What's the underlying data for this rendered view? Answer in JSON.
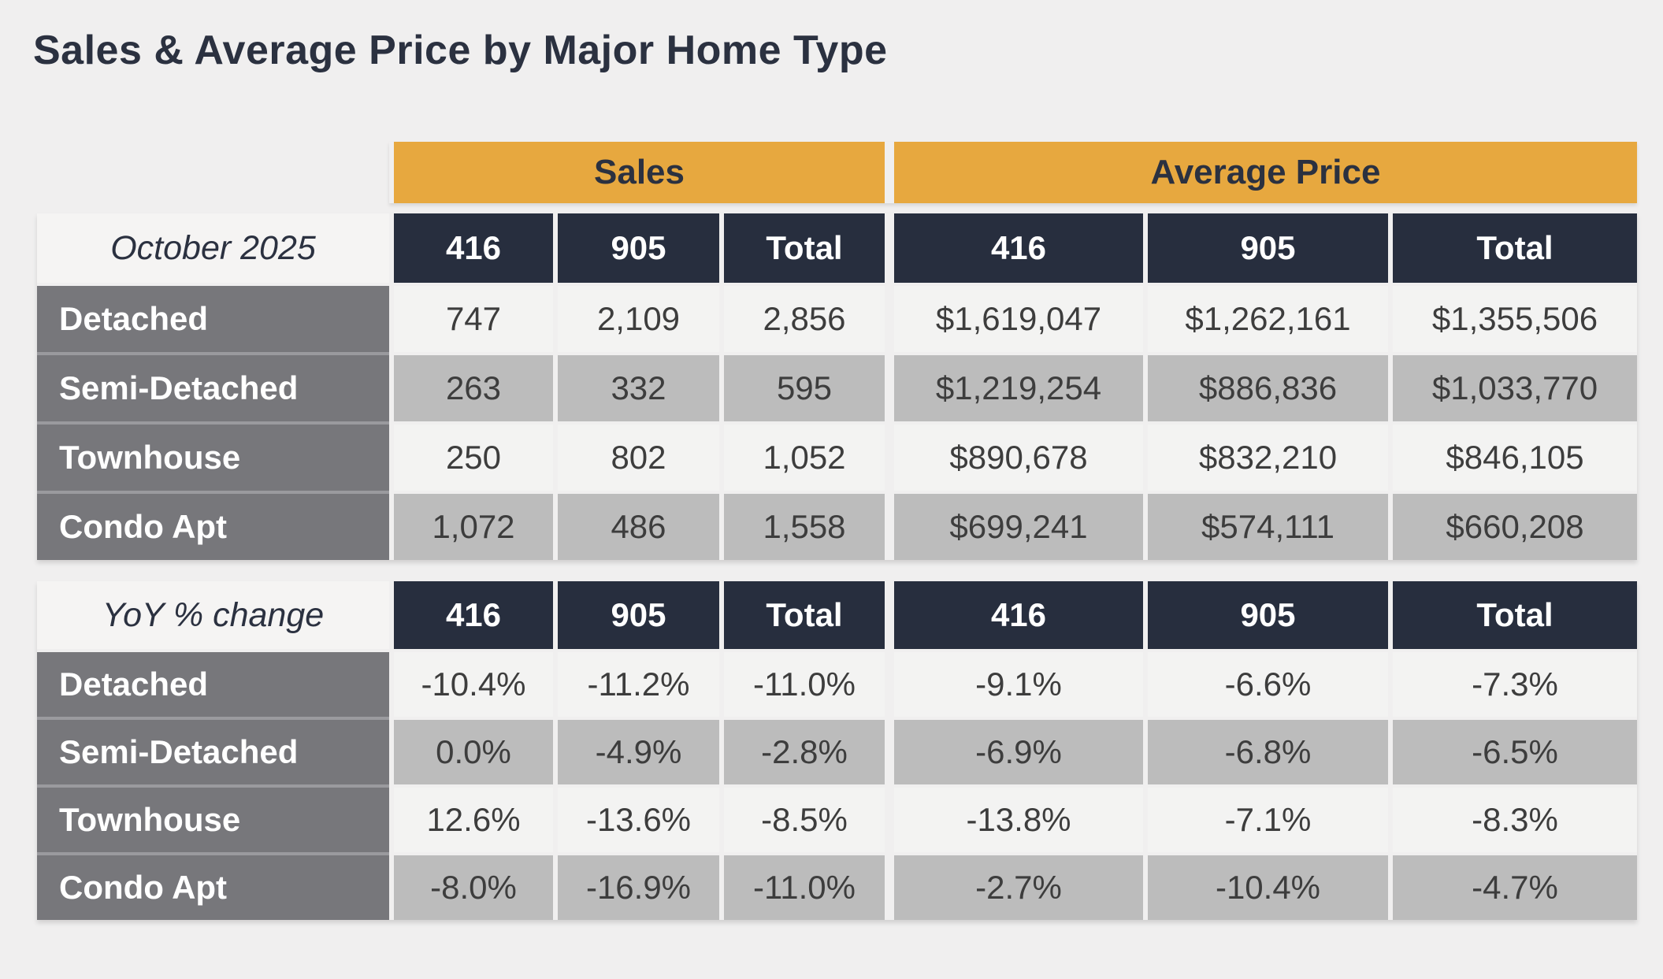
{
  "title": "Sales & Average Price by Major Home Type",
  "groups": [
    {
      "label": "Sales"
    },
    {
      "label": "Average Price"
    }
  ],
  "colors": {
    "page_background": "#f0efef",
    "group_band": "#e7a83f",
    "column_header": "#272e3e",
    "row_label": "#77777b",
    "row_light": "#f3f3f2",
    "row_alternate": "#bcbcbc",
    "title_text": "#2b3140",
    "data_text": "#3d3d3d"
  },
  "sections": [
    {
      "period_label": "October 2025",
      "columns": [
        "416",
        "905",
        "Total",
        "416",
        "905",
        "Total"
      ],
      "rows": [
        {
          "label": "Detached",
          "sales": [
            "747",
            "2,109",
            "2,856"
          ],
          "avg_price": [
            "$1,619,047",
            "$1,262,161",
            "$1,355,506"
          ]
        },
        {
          "label": "Semi-Detached",
          "sales": [
            "263",
            "332",
            "595"
          ],
          "avg_price": [
            "$1,219,254",
            "$886,836",
            "$1,033,770"
          ]
        },
        {
          "label": "Townhouse",
          "sales": [
            "250",
            "802",
            "1,052"
          ],
          "avg_price": [
            "$890,678",
            "$832,210",
            "$846,105"
          ]
        },
        {
          "label": "Condo Apt",
          "sales": [
            "1,072",
            "486",
            "1,558"
          ],
          "avg_price": [
            "$699,241",
            "$574,111",
            "$660,208"
          ]
        }
      ]
    },
    {
      "period_label": "YoY % change",
      "columns": [
        "416",
        "905",
        "Total",
        "416",
        "905",
        "Total"
      ],
      "rows": [
        {
          "label": "Detached",
          "sales": [
            "-10.4%",
            "-11.2%",
            "-11.0%"
          ],
          "avg_price": [
            "-9.1%",
            "-6.6%",
            "-7.3%"
          ]
        },
        {
          "label": "Semi-Detached",
          "sales": [
            "0.0%",
            "-4.9%",
            "-2.8%"
          ],
          "avg_price": [
            "-6.9%",
            "-6.8%",
            "-6.5%"
          ]
        },
        {
          "label": "Townhouse",
          "sales": [
            "12.6%",
            "-13.6%",
            "-8.5%"
          ],
          "avg_price": [
            "-13.8%",
            "-7.1%",
            "-8.3%"
          ]
        },
        {
          "label": "Condo Apt",
          "sales": [
            "-8.0%",
            "-16.9%",
            "-11.0%"
          ],
          "avg_price": [
            "-2.7%",
            "-10.4%",
            "-4.7%"
          ]
        }
      ]
    }
  ],
  "chart_data": [
    {
      "type": "table",
      "title": "October 2025",
      "column_groups": [
        "Sales",
        "Average Price"
      ],
      "columns": [
        "416",
        "905",
        "Total",
        "416",
        "905",
        "Total"
      ],
      "rows": [
        [
          "Detached",
          "747",
          "2,109",
          "2,856",
          "$1,619,047",
          "$1,262,161",
          "$1,355,506"
        ],
        [
          "Semi-Detached",
          "263",
          "332",
          "595",
          "$1,219,254",
          "$886,836",
          "$1,033,770"
        ],
        [
          "Townhouse",
          "250",
          "802",
          "1,052",
          "$890,678",
          "$832,210",
          "$846,105"
        ],
        [
          "Condo Apt",
          "1,072",
          "486",
          "1,558",
          "$699,241",
          "$574,111",
          "$660,208"
        ]
      ]
    },
    {
      "type": "table",
      "title": "YoY % change",
      "column_groups": [
        "Sales",
        "Average Price"
      ],
      "columns": [
        "416",
        "905",
        "Total",
        "416",
        "905",
        "Total"
      ],
      "rows": [
        [
          "Detached",
          "-10.4%",
          "-11.2%",
          "-11.0%",
          "-9.1%",
          "-6.6%",
          "-7.3%"
        ],
        [
          "Semi-Detached",
          "0.0%",
          "-4.9%",
          "-2.8%",
          "-6.9%",
          "-6.8%",
          "-6.5%"
        ],
        [
          "Townhouse",
          "12.6%",
          "-13.6%",
          "-8.5%",
          "-13.8%",
          "-7.1%",
          "-8.3%"
        ],
        [
          "Condo Apt",
          "-8.0%",
          "-16.9%",
          "-11.0%",
          "-2.7%",
          "-10.4%",
          "-4.7%"
        ]
      ]
    }
  ]
}
